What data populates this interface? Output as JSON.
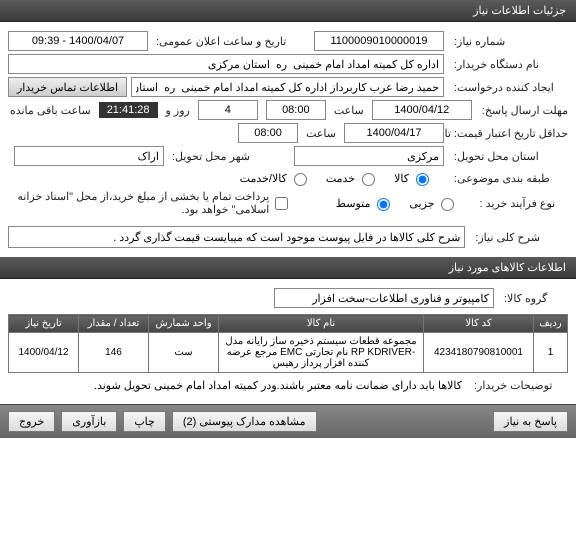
{
  "headers": {
    "details": "جزئیات اطلاعات نیاز",
    "items_info": "اطلاعات کالاهای مورد نیاز"
  },
  "labels": {
    "need_no": "شماره نیاز:",
    "announce_dt": "تاریخ و ساعت اعلان عمومی:",
    "buyer_org": "نام دستگاه خریدار:",
    "requester": "ایجاد کننده درخواست:",
    "contact_btn": "اطلاعات تماس خریدار",
    "deadline_send": "مهلت ارسال پاسخ:",
    "at": "ساعت",
    "min_credit": "حداقل تاریخ اعتبار قیمت: تا تاریخ:",
    "delivery_city": "شهر محل تحویل:",
    "delivery_prov": "استان محل تحویل:",
    "pkg_type": "طبقه بندی موضوعی:",
    "proc_type": "نوع فرآیند خرید :",
    "radio_goods": "کالا",
    "radio_service": "خدمت",
    "radio_both": "کالا/خدمت",
    "radio_low": "جزیی",
    "radio_mid": "متوسط",
    "chk_partial": "پرداخت تمام یا بخشی از مبلغ خرید،از محل \"اسناد خزانه اسلامی\" خواهد بود.",
    "remaining_days_word": "روز و",
    "remaining_tail": "ساعت باقی مانده",
    "general_desc": "شرح کلی نیاز:",
    "group": "گروه کالا:",
    "buyer_notes": "توضیحات خریدار:"
  },
  "values": {
    "need_no": "1100009010000019",
    "announce_dt": "1400/04/07 - 09:39",
    "buyer_org": "اداره کل کمیته امداد امام خمینی  ره  استان مرکزی",
    "requester": "حمید رضا عرب کاربرداز اداره کل کمیته امداد امام خمینی  ره  استان مرکزی",
    "deadline_date": "1400/04/12",
    "deadline_time": "08:00",
    "credit_date": "1400/04/17",
    "credit_time": "08:00",
    "city": "اراک",
    "province": "مرکزی",
    "remaining_days": "4",
    "remaining_clock": "21:41:28",
    "general_desc": "شرح کلی کالاها در فایل پیوست موجود است که میبایست قیمت گذاری گردد .",
    "group": "کامپیوتر و فناوری اطلاعات-سخت افزار",
    "pkg_sel": "goods",
    "proc_sel": "mid",
    "partial_checked": false,
    "buyer_notes": "کالاها باید دارای ضمانت نامه معتبر باشند.ودر کمیته امداد امام خمینی تحویل شوند."
  },
  "table": {
    "cols": {
      "row": "ردیف",
      "code": "کد کالا",
      "name": "نام کالا",
      "unit": "واحد شمارش",
      "qty": "تعداد / مقدار",
      "date": "تاریخ نیاز"
    },
    "rows": [
      {
        "row": "1",
        "code": "4234180790810001",
        "name": "مجموعه قطعات سیستم ذخیره ساز رایانه مدل -RP KDRIVER نام تجارتی EMC مرجع عرضه کننده افزار پرداز رهیس",
        "unit": "ست",
        "qty": "146",
        "date": "1400/04/12"
      }
    ]
  },
  "footer": {
    "exit": "خروج",
    "refresh": "بازآوری",
    "print": "چاپ",
    "attachments": "مشاهده مدارک پیوستی (2)",
    "reply": "پاسخ به نیاز"
  }
}
